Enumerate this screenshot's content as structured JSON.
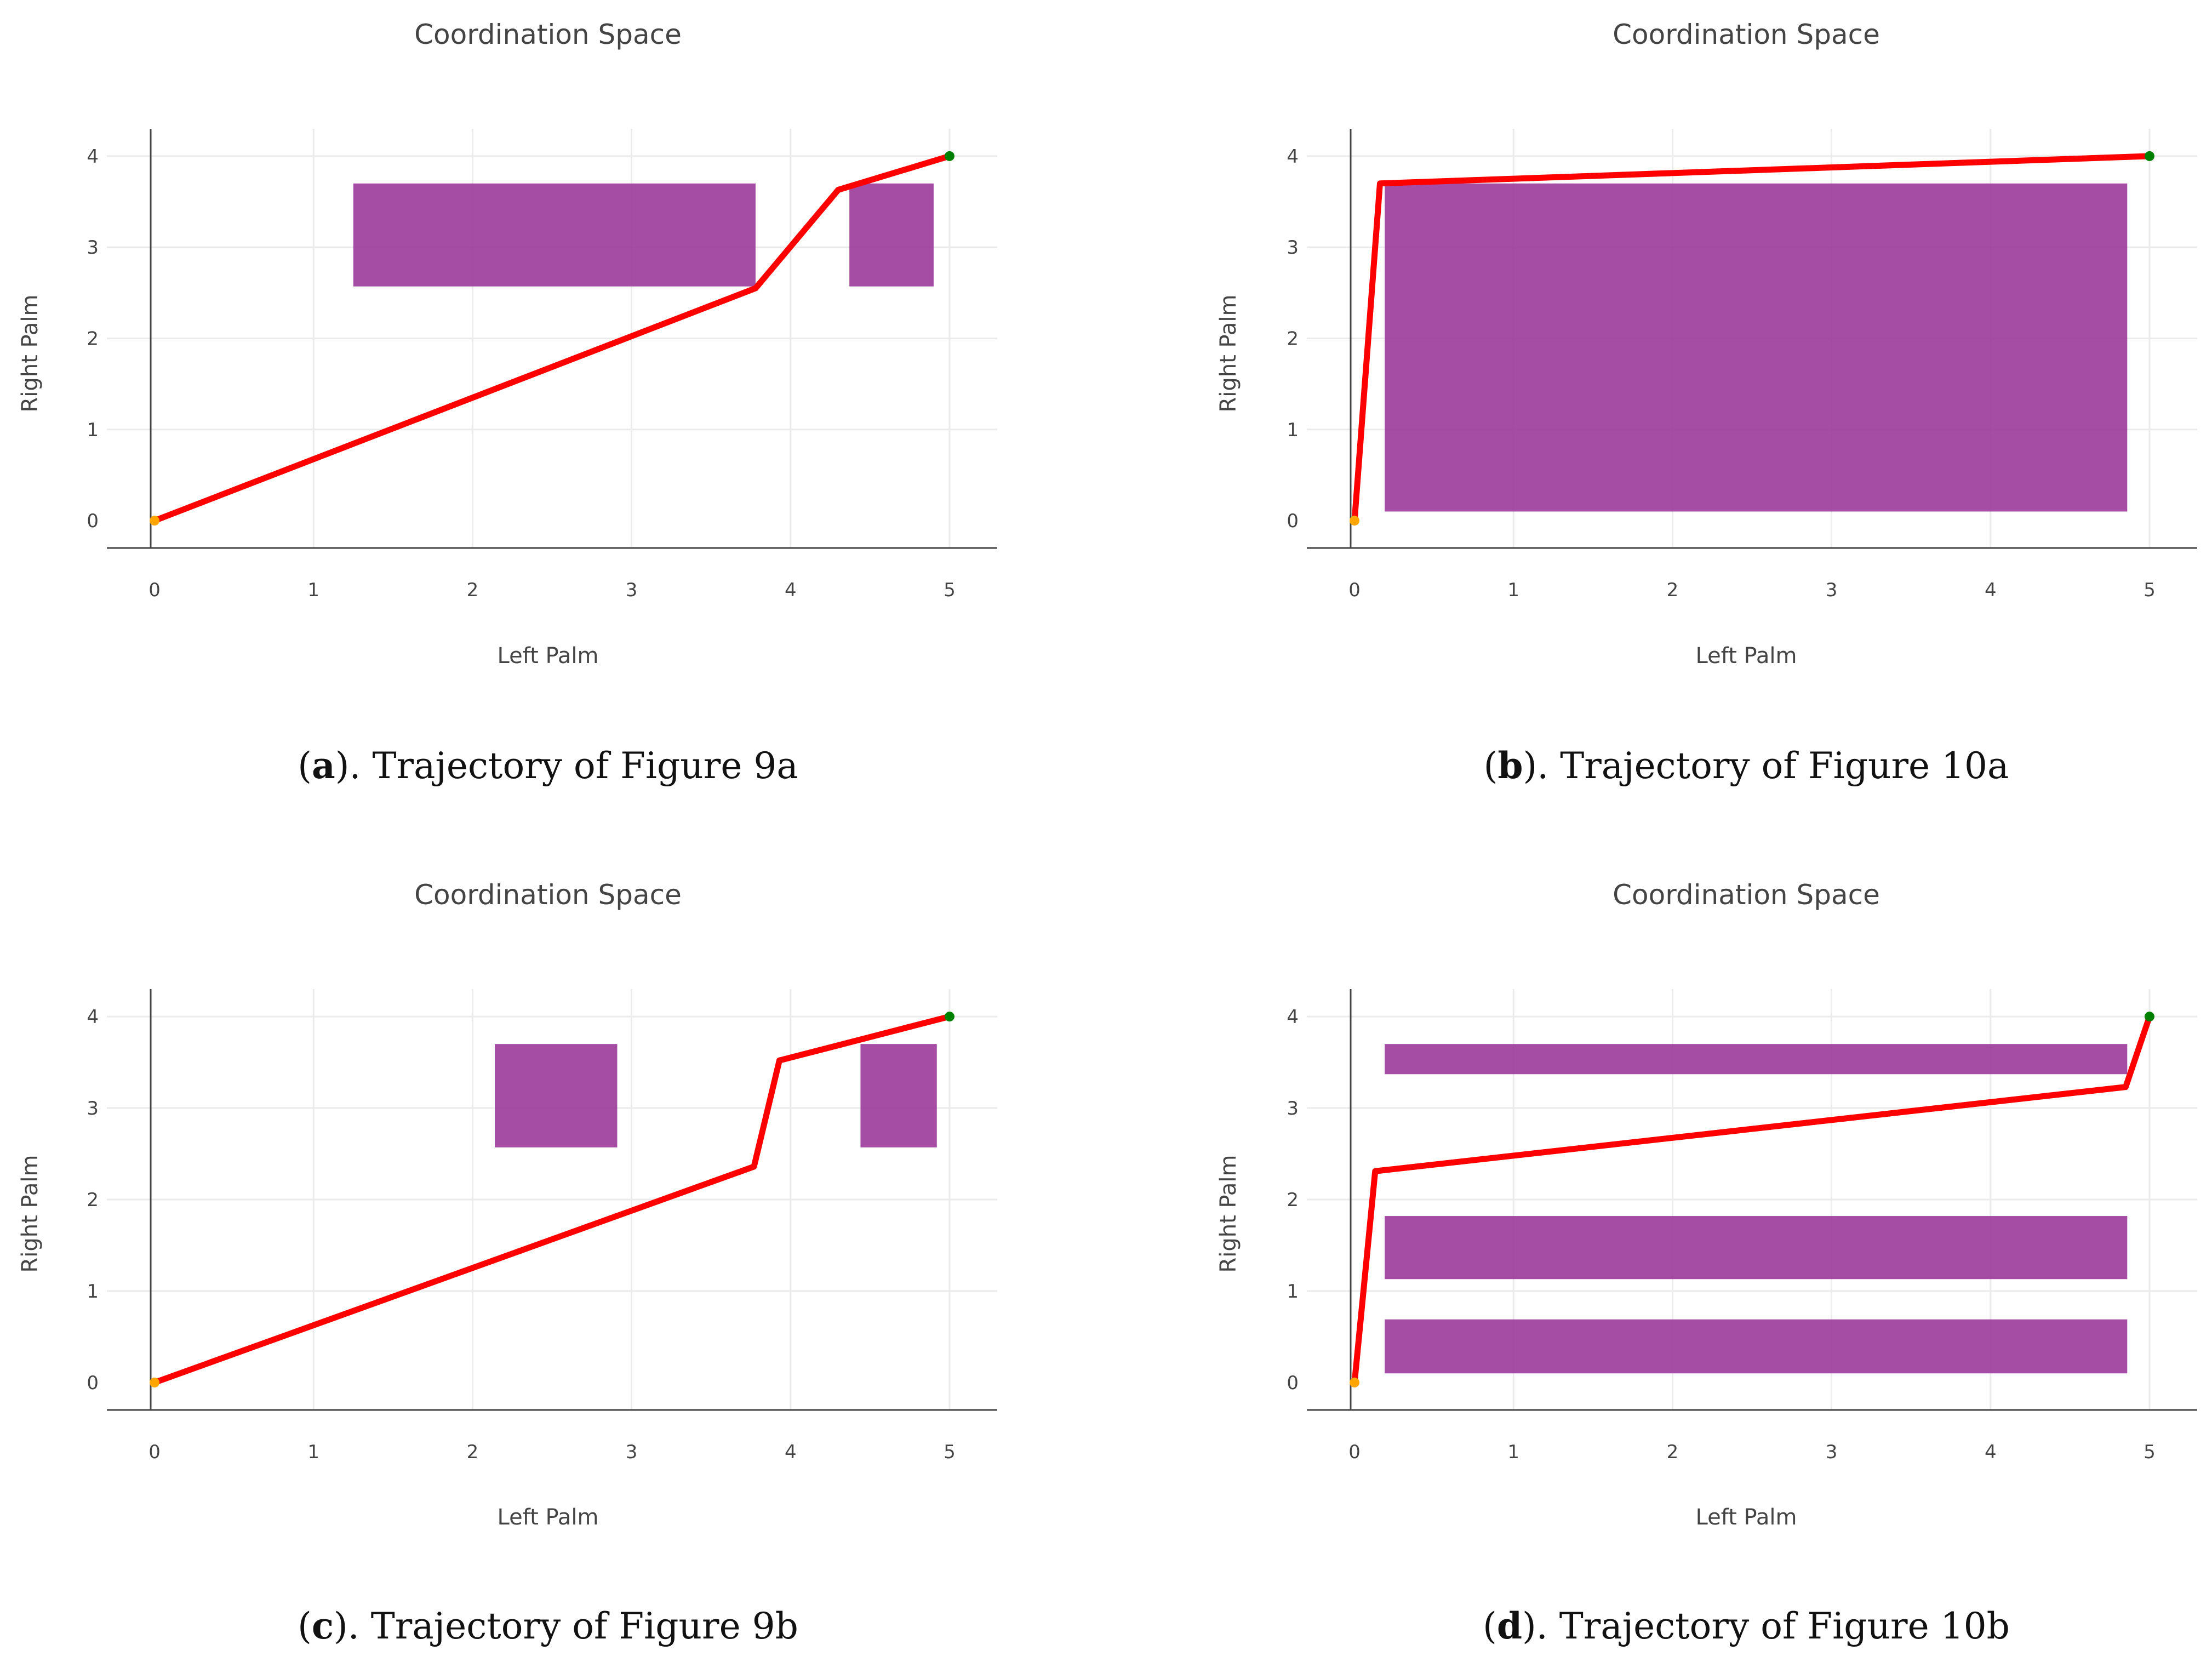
{
  "colors": {
    "region": "#9b3a9b",
    "trajectory": "#ff0000",
    "start_marker": "#ffa500",
    "end_marker": "#008000",
    "grid": "#ebebeb",
    "axis": "#444444"
  },
  "chart_data": [
    {
      "id": "a",
      "type": "line",
      "title": "Coordination Space",
      "xlabel": "Left Palm",
      "ylabel": "Right Palm",
      "xlim": [
        -0.3,
        5.3
      ],
      "ylim": [
        -0.3,
        4.3
      ],
      "xticks": [
        0,
        1,
        2,
        3,
        4,
        5
      ],
      "yticks": [
        0,
        1,
        2,
        3,
        4
      ],
      "regions": [
        {
          "x0": 1.25,
          "x1": 3.78,
          "y0": 2.57,
          "y1": 3.7
        },
        {
          "x0": 4.37,
          "x1": 4.9,
          "y0": 2.57,
          "y1": 3.7
        }
      ],
      "trajectory": {
        "x": [
          0,
          3.78,
          4.3,
          5
        ],
        "y": [
          0,
          2.55,
          3.63,
          4
        ]
      },
      "start": {
        "x": 0,
        "y": 0
      },
      "end": {
        "x": 5,
        "y": 4
      },
      "caption": {
        "letter": "a",
        "open": "(",
        "close": ").",
        "text": " Trajectory of Figure 9a"
      }
    },
    {
      "id": "b",
      "type": "line",
      "title": "Coordination Space",
      "xlabel": "Left Palm",
      "ylabel": "Right Palm",
      "xlim": [
        -0.3,
        5.3
      ],
      "ylim": [
        -0.3,
        4.3
      ],
      "xticks": [
        0,
        1,
        2,
        3,
        4,
        5
      ],
      "yticks": [
        0,
        1,
        2,
        3,
        4
      ],
      "regions": [
        {
          "x0": 0.19,
          "x1": 4.86,
          "y0": 0.1,
          "y1": 3.7
        }
      ],
      "trajectory": {
        "x": [
          0,
          0.16,
          5
        ],
        "y": [
          0,
          3.7,
          4
        ]
      },
      "start": {
        "x": 0,
        "y": 0
      },
      "end": {
        "x": 5,
        "y": 4
      },
      "caption": {
        "letter": "b",
        "open": "(",
        "close": ").",
        "text": " Trajectory of Figure 10a"
      }
    },
    {
      "id": "c",
      "type": "line",
      "title": "Coordination Space",
      "xlabel": "Left Palm",
      "ylabel": "Right Palm",
      "xlim": [
        -0.3,
        5.3
      ],
      "ylim": [
        -0.3,
        4.3
      ],
      "xticks": [
        0,
        1,
        2,
        3,
        4,
        5
      ],
      "yticks": [
        0,
        1,
        2,
        3,
        4
      ],
      "regions": [
        {
          "x0": 2.14,
          "x1": 2.91,
          "y0": 2.57,
          "y1": 3.7
        },
        {
          "x0": 4.44,
          "x1": 4.92,
          "y0": 2.57,
          "y1": 3.7
        }
      ],
      "trajectory": {
        "x": [
          0,
          3.77,
          3.93,
          5
        ],
        "y": [
          0,
          2.36,
          3.52,
          4
        ]
      },
      "start": {
        "x": 0,
        "y": 0
      },
      "end": {
        "x": 5,
        "y": 4
      },
      "caption": {
        "letter": "c",
        "open": "(",
        "close": ").",
        "text": " Trajectory of Figure 9b"
      }
    },
    {
      "id": "d",
      "type": "line",
      "title": "Coordination Space",
      "xlabel": "Left Palm",
      "ylabel": "Right Palm",
      "xlim": [
        -0.3,
        5.3
      ],
      "ylim": [
        -0.3,
        4.3
      ],
      "xticks": [
        0,
        1,
        2,
        3,
        4,
        5
      ],
      "yticks": [
        0,
        1,
        2,
        3,
        4
      ],
      "regions": [
        {
          "x0": 0.19,
          "x1": 4.86,
          "y0": 3.37,
          "y1": 3.7
        },
        {
          "x0": 0.19,
          "x1": 4.86,
          "y0": 1.13,
          "y1": 1.82
        },
        {
          "x0": 0.19,
          "x1": 4.86,
          "y0": 0.1,
          "y1": 0.69
        }
      ],
      "trajectory": {
        "x": [
          0,
          0.13,
          4.85,
          5
        ],
        "y": [
          0,
          2.31,
          3.23,
          4
        ]
      },
      "start": {
        "x": 0,
        "y": 0
      },
      "end": {
        "x": 5,
        "y": 4
      },
      "caption": {
        "letter": "d",
        "open": "(",
        "close": ").",
        "text": " Trajectory of Figure 10b"
      }
    }
  ]
}
